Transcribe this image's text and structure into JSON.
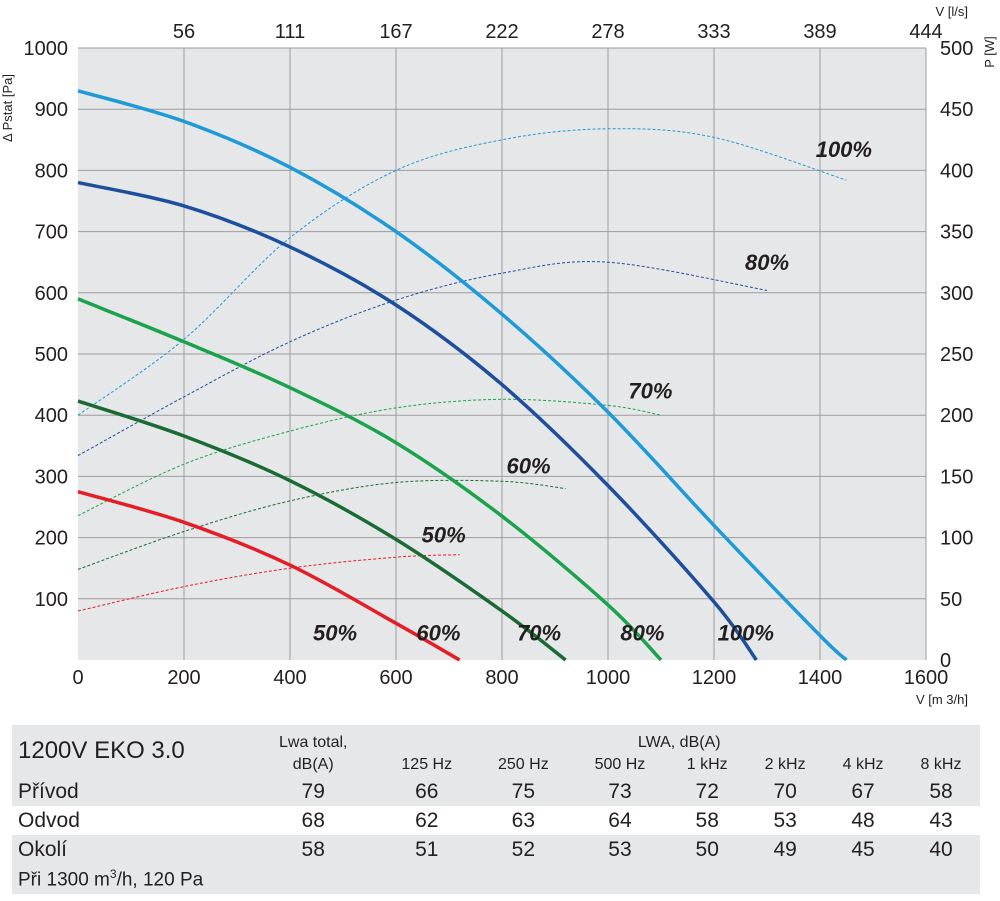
{
  "chart_data": {
    "type": "line",
    "x_axis": {
      "label": "V [m 3/h]",
      "range": [
        0,
        1600
      ],
      "ticks": [
        0,
        200,
        400,
        600,
        800,
        1000,
        1200,
        1400,
        1600
      ]
    },
    "x2_axis": {
      "label": "V [l/s]",
      "ticks": [
        "56",
        "111",
        "167",
        "222",
        "278",
        "333",
        "389",
        "444"
      ],
      "tick_positions_m3h": [
        200,
        400,
        600,
        800,
        1000,
        1200,
        1400,
        1600
      ]
    },
    "y_axis": {
      "label": "Δ Pstat [Pa]",
      "range": [
        0,
        1000
      ],
      "ticks": [
        100,
        200,
        300,
        400,
        500,
        600,
        700,
        800,
        900,
        1000
      ]
    },
    "y2_axis": {
      "label": "P [W]",
      "range": [
        0,
        500
      ],
      "ticks": [
        0,
        50,
        100,
        150,
        200,
        250,
        300,
        350,
        400,
        450,
        500
      ]
    },
    "grid": true,
    "series": [
      {
        "name": "100%",
        "kind": "pressure",
        "color": "#1e9ad6",
        "points": [
          [
            0,
            930
          ],
          [
            200,
            880
          ],
          [
            400,
            805
          ],
          [
            600,
            700
          ],
          [
            800,
            565
          ],
          [
            1000,
            405
          ],
          [
            1200,
            220
          ],
          [
            1400,
            40
          ],
          [
            1450,
            0
          ]
        ]
      },
      {
        "name": "80%",
        "kind": "pressure",
        "color": "#1d4f9c",
        "points": [
          [
            0,
            780
          ],
          [
            200,
            742
          ],
          [
            400,
            675
          ],
          [
            600,
            580
          ],
          [
            800,
            450
          ],
          [
            1000,
            285
          ],
          [
            1200,
            95
          ],
          [
            1280,
            0
          ]
        ]
      },
      {
        "name": "70%",
        "kind": "pressure",
        "color": "#1aa24c",
        "points": [
          [
            0,
            590
          ],
          [
            200,
            520
          ],
          [
            400,
            445
          ],
          [
            600,
            355
          ],
          [
            800,
            235
          ],
          [
            1000,
            90
          ],
          [
            1100,
            0
          ]
        ]
      },
      {
        "name": "60%",
        "kind": "pressure",
        "color": "#1b6a35",
        "points": [
          [
            0,
            423
          ],
          [
            200,
            366
          ],
          [
            400,
            293
          ],
          [
            600,
            197
          ],
          [
            800,
            80
          ],
          [
            920,
            0
          ]
        ]
      },
      {
        "name": "50%",
        "kind": "pressure",
        "color": "#e41e26",
        "points": [
          [
            0,
            275
          ],
          [
            200,
            225
          ],
          [
            400,
            155
          ],
          [
            600,
            60
          ],
          [
            720,
            0
          ]
        ]
      },
      {
        "name": "100%",
        "kind": "power",
        "color": "#1e9ad6",
        "points_W": [
          [
            0,
            200
          ],
          [
            200,
            262
          ],
          [
            400,
            345
          ],
          [
            600,
            400
          ],
          [
            800,
            425
          ],
          [
            1000,
            434
          ],
          [
            1200,
            427
          ],
          [
            1450,
            392
          ]
        ]
      },
      {
        "name": "80%",
        "kind": "power",
        "color": "#1d4f9c",
        "points_W": [
          [
            0,
            167
          ],
          [
            200,
            215
          ],
          [
            400,
            260
          ],
          [
            600,
            294
          ],
          [
            800,
            316
          ],
          [
            1000,
            325
          ],
          [
            1300,
            302
          ]
        ]
      },
      {
        "name": "70%",
        "kind": "power",
        "color": "#1aa24c",
        "points_W": [
          [
            0,
            118
          ],
          [
            200,
            160
          ],
          [
            400,
            187
          ],
          [
            600,
            206
          ],
          [
            800,
            213
          ],
          [
            1000,
            208
          ],
          [
            1100,
            200
          ]
        ]
      },
      {
        "name": "60%",
        "kind": "power",
        "color": "#1b6a35",
        "points_W": [
          [
            0,
            74
          ],
          [
            200,
            105
          ],
          [
            400,
            130
          ],
          [
            600,
            145
          ],
          [
            800,
            146
          ],
          [
            920,
            140
          ]
        ]
      },
      {
        "name": "50%",
        "kind": "power",
        "color": "#e41e26",
        "points_W": [
          [
            0,
            40
          ],
          [
            200,
            60
          ],
          [
            400,
            75
          ],
          [
            600,
            84
          ],
          [
            720,
            86
          ]
        ]
      }
    ],
    "curve_labels": [
      {
        "text": "50%",
        "x": 485,
        "y": 45
      },
      {
        "text": "60%",
        "x": 680,
        "y": 45
      },
      {
        "text": "70%",
        "x": 870,
        "y": 45
      },
      {
        "text": "80%",
        "x": 1065,
        "y": 45
      },
      {
        "text": "100%",
        "x": 1260,
        "y": 45
      },
      {
        "text": "50%",
        "x": 690,
        "y": 205
      },
      {
        "text": "60%",
        "x": 850,
        "y": 318
      },
      {
        "text": "70%",
        "x": 1080,
        "y": 440
      },
      {
        "text": "80%",
        "x": 1300,
        "y": 650
      },
      {
        "text": "100%",
        "x": 1445,
        "y": 835
      }
    ]
  },
  "table": {
    "title": "1200V EKO 3.0",
    "lwa_total_header": [
      "Lwa total,",
      "dB(A)"
    ],
    "lwa_header": "LWA, dB(A)",
    "bands": [
      "125 Hz",
      "250 Hz",
      "500 Hz",
      "1 kHz",
      "2 kHz",
      "4 kHz",
      "8 kHz"
    ],
    "rows": [
      {
        "name": "Přívod",
        "total": "79",
        "values": [
          "66",
          "75",
          "73",
          "72",
          "70",
          "67",
          "58"
        ]
      },
      {
        "name": "Odvod",
        "total": "68",
        "values": [
          "62",
          "63",
          "64",
          "58",
          "53",
          "48",
          "43"
        ]
      },
      {
        "name": "Okolí",
        "total": "58",
        "values": [
          "51",
          "52",
          "53",
          "50",
          "49",
          "45",
          "40"
        ]
      }
    ],
    "note_prefix": "Při 1300 m",
    "note_sup": "3",
    "note_suffix": "/h, 120 Pa"
  }
}
